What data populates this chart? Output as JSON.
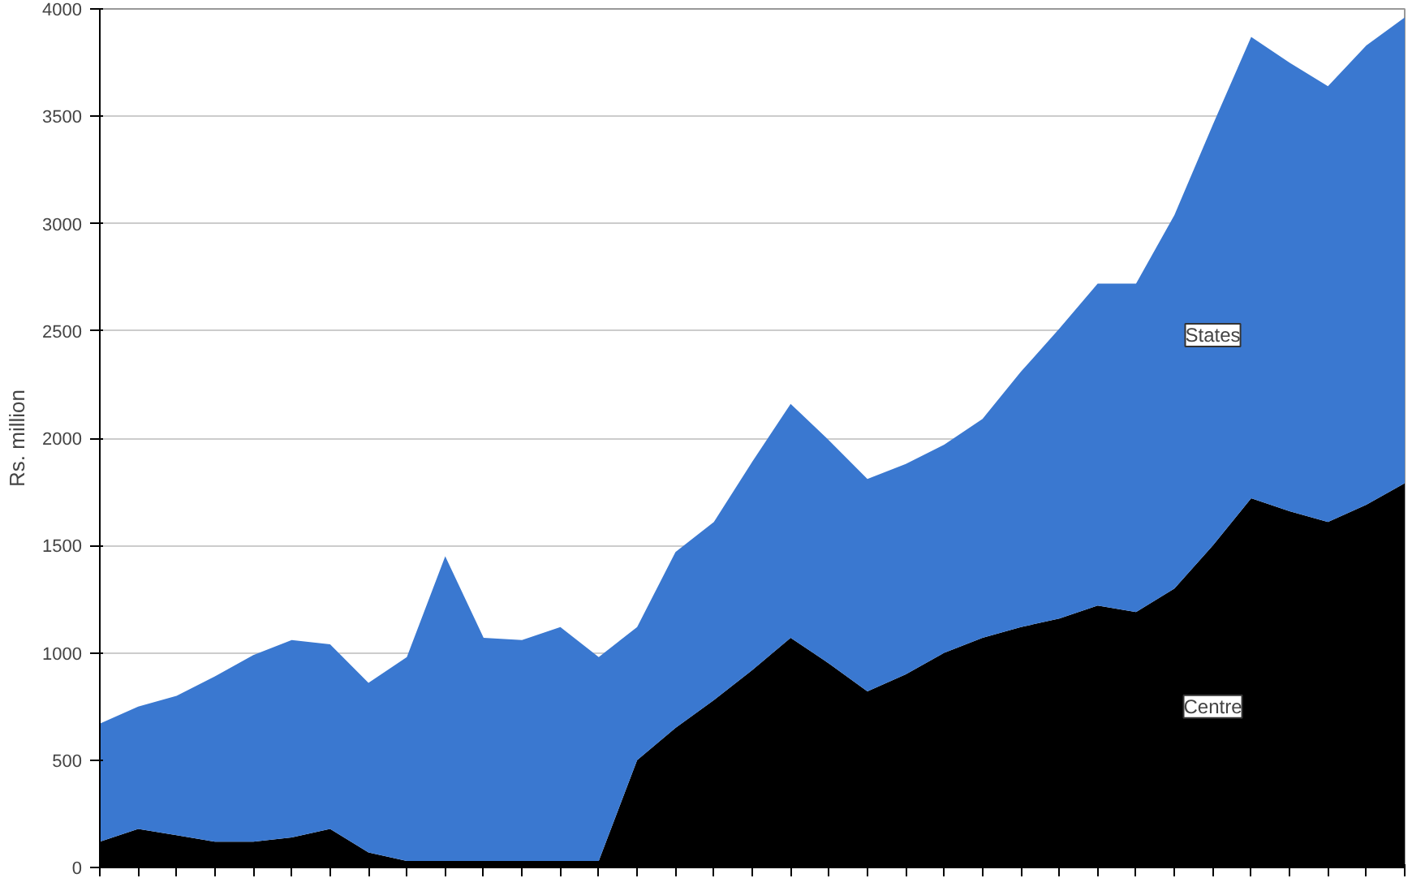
{
  "chart_data": {
    "type": "area",
    "stacked": true,
    "ylabel": "Rs. million",
    "categories": [
      null,
      null,
      null,
      null,
      null,
      null,
      null,
      null,
      null,
      null,
      null,
      null,
      null,
      null,
      null,
      null,
      null,
      null,
      null,
      null,
      null,
      null,
      null,
      null,
      null,
      null,
      null,
      null,
      null,
      null,
      null,
      null,
      null,
      null,
      null
    ],
    "series": [
      {
        "name": "Centre",
        "color": "#000000",
        "values": [
          120,
          180,
          150,
          120,
          120,
          140,
          180,
          70,
          30,
          30,
          30,
          30,
          30,
          30,
          500,
          650,
          780,
          920,
          1070,
          950,
          820,
          900,
          1000,
          1070,
          1120,
          1160,
          1220,
          1190,
          1300,
          1500,
          1720,
          1660,
          1610,
          1690,
          1790
        ]
      },
      {
        "name": "States",
        "color": "#3a78d0",
        "values": [
          550,
          570,
          650,
          770,
          870,
          920,
          860,
          790,
          950,
          1420,
          1040,
          1030,
          1090,
          950,
          620,
          820,
          830,
          970,
          1090,
          1040,
          990,
          980,
          970,
          1020,
          1190,
          1350,
          1500,
          1530,
          1740,
          1960,
          2150,
          2090,
          2030,
          2140,
          2170
        ]
      }
    ],
    "ylim": [
      0,
      4000
    ],
    "yticks": [
      0,
      500,
      1000,
      1500,
      2000,
      2500,
      3000,
      3500,
      4000
    ],
    "grid": "y"
  }
}
